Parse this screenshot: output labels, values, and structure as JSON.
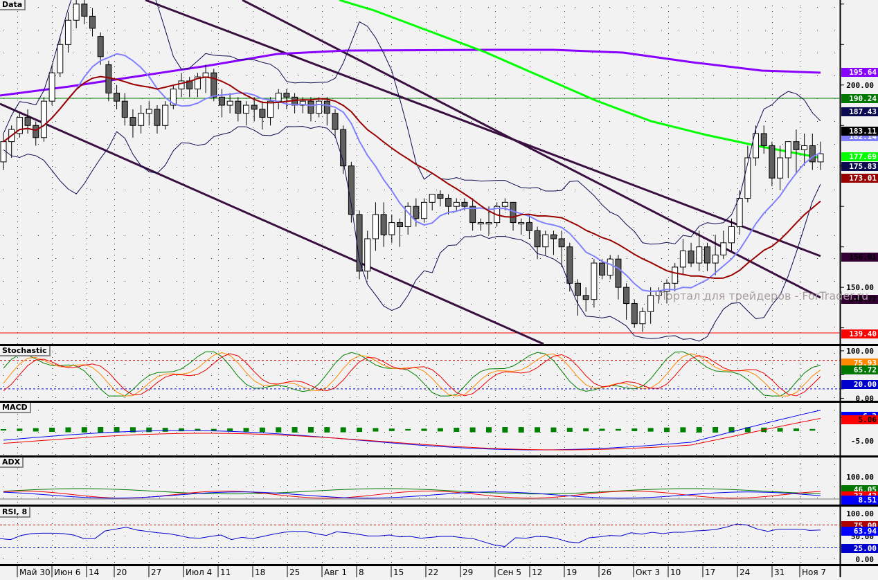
{
  "chart_data": [
    {
      "type": "candlestick",
      "panel": "Data",
      "title": "Data",
      "ylim": [
        136,
        221
      ],
      "y_ticks": [
        150.0,
        200.0
      ],
      "price_labels": [
        {
          "value": 195.64,
          "color": "#8800ff",
          "series": "SMA long (purple)"
        },
        {
          "value": 190.24,
          "color": "#007700",
          "series": "horizontal level (green)"
        },
        {
          "value": 187.43,
          "color": "#0a0a50",
          "series": "Bollinger upper"
        },
        {
          "value": 183.11,
          "color": "#000000",
          "series": "close"
        },
        {
          "value": 182.14,
          "color": "#8080ff",
          "series": "Bollinger middle"
        },
        {
          "value": 177.69,
          "color": "#00ff00",
          "series": "SMA (green)"
        },
        {
          "value": 175.83,
          "color": "#0a0a50",
          "series": "Bollinger lower"
        },
        {
          "value": 173.01,
          "color": "#990000",
          "series": "SMA (dark red)"
        },
        {
          "value": 156.01,
          "color": "#330033",
          "series": "channel line upper"
        },
        {
          "value": 146.77,
          "color": "#330033",
          "series": "channel line lower"
        },
        {
          "value": 139.4,
          "color": "#ff0000",
          "series": "horizontal level (red)"
        }
      ],
      "x_labels": [
        "Май 30",
        "Июн 6",
        "14",
        "20",
        "27",
        "Июл 4",
        "11",
        "18",
        "25",
        "Авг 1",
        "8",
        "15",
        "22",
        "29",
        "Сен 5",
        "12",
        "19",
        "26",
        "Окт 3",
        "10",
        "17",
        "24",
        "31",
        "Ноя 7"
      ],
      "candles_ohlc": [
        [
          181,
          186,
          179,
          188
        ],
        [
          186,
          189,
          182,
          190
        ],
        [
          188,
          192,
          187,
          193
        ],
        [
          192,
          190,
          188,
          194
        ],
        [
          190,
          187,
          185,
          191
        ],
        [
          187,
          196,
          186,
          197
        ],
        [
          196,
          203,
          195,
          205
        ],
        [
          203,
          210,
          202,
          212
        ],
        [
          210,
          216,
          208,
          218
        ],
        [
          216,
          220,
          214,
          221
        ],
        [
          220,
          217,
          215,
          221
        ],
        [
          217,
          214,
          212,
          219
        ],
        [
          212,
          207,
          205,
          213
        ],
        [
          205,
          198,
          196,
          206
        ],
        [
          198,
          196,
          194,
          200
        ],
        [
          196,
          192,
          190,
          198
        ],
        [
          192,
          190,
          187,
          194
        ],
        [
          190,
          193,
          188,
          195
        ],
        [
          193,
          194,
          190,
          196
        ],
        [
          194,
          190,
          188,
          195
        ],
        [
          190,
          195,
          189,
          196
        ],
        [
          195,
          199,
          194,
          200
        ],
        [
          199,
          201,
          197,
          203
        ],
        [
          201,
          199,
          197,
          202
        ],
        [
          199,
          202,
          197,
          203
        ],
        [
          202,
          203,
          198,
          205
        ],
        [
          203,
          197,
          196,
          204
        ],
        [
          197,
          195,
          192,
          199
        ],
        [
          195,
          196,
          193,
          198
        ],
        [
          196,
          193,
          191,
          197
        ],
        [
          193,
          195,
          190,
          196
        ],
        [
          195,
          194,
          191,
          197
        ],
        [
          194,
          192,
          189,
          196
        ],
        [
          192,
          196,
          190,
          197
        ],
        [
          196,
          198,
          194,
          199
        ],
        [
          198,
          197,
          194,
          199
        ],
        [
          197,
          195,
          193,
          198
        ],
        [
          195,
          196,
          193,
          197
        ],
        [
          196,
          193,
          191,
          197
        ],
        [
          193,
          196,
          192,
          197
        ],
        [
          196,
          193,
          190,
          197
        ],
        [
          193,
          189,
          187,
          194
        ],
        [
          189,
          180,
          178,
          190
        ],
        [
          180,
          168,
          166,
          181
        ],
        [
          168,
          154,
          152,
          169
        ],
        [
          154,
          162,
          152,
          164
        ],
        [
          162,
          168,
          159,
          171
        ],
        [
          168,
          163,
          160,
          171
        ],
        [
          163,
          166,
          161,
          168
        ],
        [
          166,
          165,
          160,
          167
        ],
        [
          165,
          170,
          163,
          171
        ],
        [
          170,
          167,
          165,
          172
        ],
        [
          167,
          171,
          166,
          172
        ],
        [
          171,
          173,
          169,
          173
        ],
        [
          173,
          172,
          170,
          174
        ],
        [
          172,
          170,
          168,
          173
        ],
        [
          170,
          171,
          169,
          172
        ],
        [
          171,
          170,
          169,
          172
        ],
        [
          170,
          166,
          164,
          172
        ],
        [
          166,
          166,
          164,
          167
        ],
        [
          166,
          166,
          163,
          170
        ],
        [
          166,
          170,
          165,
          171
        ],
        [
          170,
          171,
          169,
          172
        ],
        [
          171,
          166,
          164,
          171
        ],
        [
          166,
          166,
          163,
          167
        ],
        [
          166,
          164,
          162,
          168
        ],
        [
          164,
          160,
          157,
          165
        ],
        [
          160,
          163,
          158,
          164
        ],
        [
          163,
          162,
          158,
          164
        ],
        [
          162,
          160,
          155,
          164
        ],
        [
          160,
          151,
          149,
          161
        ],
        [
          151,
          148,
          143,
          152
        ],
        [
          148,
          147,
          144,
          150
        ],
        [
          147,
          156,
          145,
          157
        ],
        [
          156,
          153,
          152,
          157
        ],
        [
          153,
          157,
          152,
          158
        ],
        [
          157,
          150,
          147,
          158
        ],
        [
          150,
          146,
          142,
          151
        ],
        [
          146,
          141,
          140,
          147
        ],
        [
          141,
          144,
          139,
          145
        ],
        [
          144,
          148,
          141,
          150
        ],
        [
          148,
          149,
          146,
          150
        ],
        [
          149,
          151,
          146,
          152
        ],
        [
          151,
          155,
          149,
          156
        ],
        [
          155,
          159,
          153,
          162
        ],
        [
          159,
          156,
          155,
          161
        ],
        [
          156,
          160,
          154,
          164
        ],
        [
          160,
          156,
          154,
          161
        ],
        [
          156,
          158,
          153,
          163
        ],
        [
          158,
          161,
          157,
          164
        ],
        [
          161,
          165,
          159,
          167
        ],
        [
          165,
          172,
          163,
          174
        ],
        [
          172,
          182,
          171,
          185
        ],
        [
          182,
          188,
          180,
          190
        ],
        [
          188,
          185,
          183,
          190
        ],
        [
          185,
          177,
          175,
          186
        ],
        [
          177,
          182,
          174,
          185
        ],
        [
          182,
          186,
          177,
          186
        ],
        [
          186,
          184,
          178,
          189
        ],
        [
          184,
          185,
          180,
          188
        ],
        [
          185,
          181,
          179,
          188
        ],
        [
          181,
          183,
          179,
          186
        ]
      ],
      "overlays": {
        "bollinger_upper_end": 187.43,
        "bollinger_middle_end": 182.14,
        "bollinger_lower_end": 175.83,
        "sma_dark_red_end": 173.01,
        "sma_green_end": 177.69,
        "sma_purple_end": 195.64,
        "channel_upper_end": 156.01,
        "channel_lower_end": 146.77,
        "hline_green": 190.24,
        "hline_red": 139.4
      }
    },
    {
      "type": "line",
      "panel": "Stochastic",
      "title": "Stochastic",
      "ylim": [
        -5,
        110
      ],
      "y_ticks": [
        0.0,
        20.0,
        50.0,
        100.0
      ],
      "levels": [
        {
          "value": 80,
          "color": "#cc0000",
          "style": "dashed"
        },
        {
          "value": 20,
          "color": "#0000cc",
          "style": "dashed"
        }
      ],
      "value_labels": [
        {
          "value": 75.93,
          "color": "#ff8800"
        },
        {
          "value": 65.72,
          "color": "#007700"
        },
        {
          "value": 20.0,
          "color": "#0000cc"
        }
      ],
      "series": [
        {
          "name": "%K fast (green)",
          "color": "#008000"
        },
        {
          "name": "%D (orange)",
          "color": "#ff8800"
        },
        {
          "name": "slow (red)",
          "color": "#ee0000"
        }
      ]
    },
    {
      "type": "bar+line",
      "panel": "MACD",
      "title": "MACD",
      "y_ticks": [
        -5.0,
        5.06
      ],
      "value_labels": [
        {
          "value": 5.06,
          "color": "#ff0000"
        },
        {
          "value": 6.2,
          "color": "#0000ff"
        }
      ],
      "series": [
        {
          "name": "MACD line",
          "color": "#0000ee"
        },
        {
          "name": "Signal line",
          "color": "#ee0000"
        },
        {
          "name": "Histogram",
          "color": "#008000"
        }
      ]
    },
    {
      "type": "line",
      "panel": "ADX",
      "title": "ADX",
      "y_ticks": [
        100.0
      ],
      "value_labels": [
        {
          "value": 46.05,
          "color": "#007700"
        },
        {
          "value": 23.42,
          "color": "#ff0000"
        },
        {
          "value": 8.51,
          "color": "#0000ff"
        }
      ],
      "series": [
        {
          "name": "ADX",
          "color": "#007700"
        },
        {
          "name": "-DI",
          "color": "#ee0000"
        },
        {
          "name": "+DI",
          "color": "#0000ee"
        }
      ]
    },
    {
      "type": "line",
      "panel": "RSI, 8",
      "title": "RSI, 8",
      "ylim": [
        -5,
        110
      ],
      "y_ticks": [
        0.0,
        25.0,
        50.0,
        75.0,
        100.0
      ],
      "levels": [
        {
          "value": 75,
          "color": "#cc0000",
          "style": "dashed"
        },
        {
          "value": 25,
          "color": "#0000cc",
          "style": "dashed"
        }
      ],
      "value_labels": [
        {
          "value": 75.0,
          "color": "#aa0000"
        },
        {
          "value": 63.94,
          "color": "#0000ff"
        },
        {
          "value": 25.0,
          "color": "#0000cc"
        }
      ],
      "series": [
        {
          "name": "RSI(8)",
          "color": "#0000cc",
          "values": [
            45,
            43,
            52,
            56,
            57,
            57,
            56,
            53,
            45,
            45,
            62,
            66,
            70,
            64,
            61,
            58,
            56,
            52,
            47,
            46,
            50,
            53,
            43,
            48,
            45,
            50,
            55,
            59,
            61,
            61,
            56,
            52,
            60,
            58,
            55,
            51,
            51,
            53,
            49,
            50,
            46,
            48,
            50,
            50,
            47,
            45,
            38,
            31,
            28,
            47,
            46,
            50,
            49,
            45,
            38,
            36,
            47,
            49,
            52,
            51,
            58,
            55,
            59,
            56,
            59,
            59,
            62,
            63,
            65,
            70,
            77,
            75,
            66,
            61,
            66,
            66,
            66,
            63,
            64
          ]
        }
      ]
    }
  ],
  "panels": {
    "data_label": "Data",
    "stoch_label": "Stochastic",
    "macd_label": "MACD",
    "adx_label": "ADX",
    "rsi_label": "RSI, 8"
  },
  "watermark": "Портал для трейдеров - ForTrader.ru"
}
